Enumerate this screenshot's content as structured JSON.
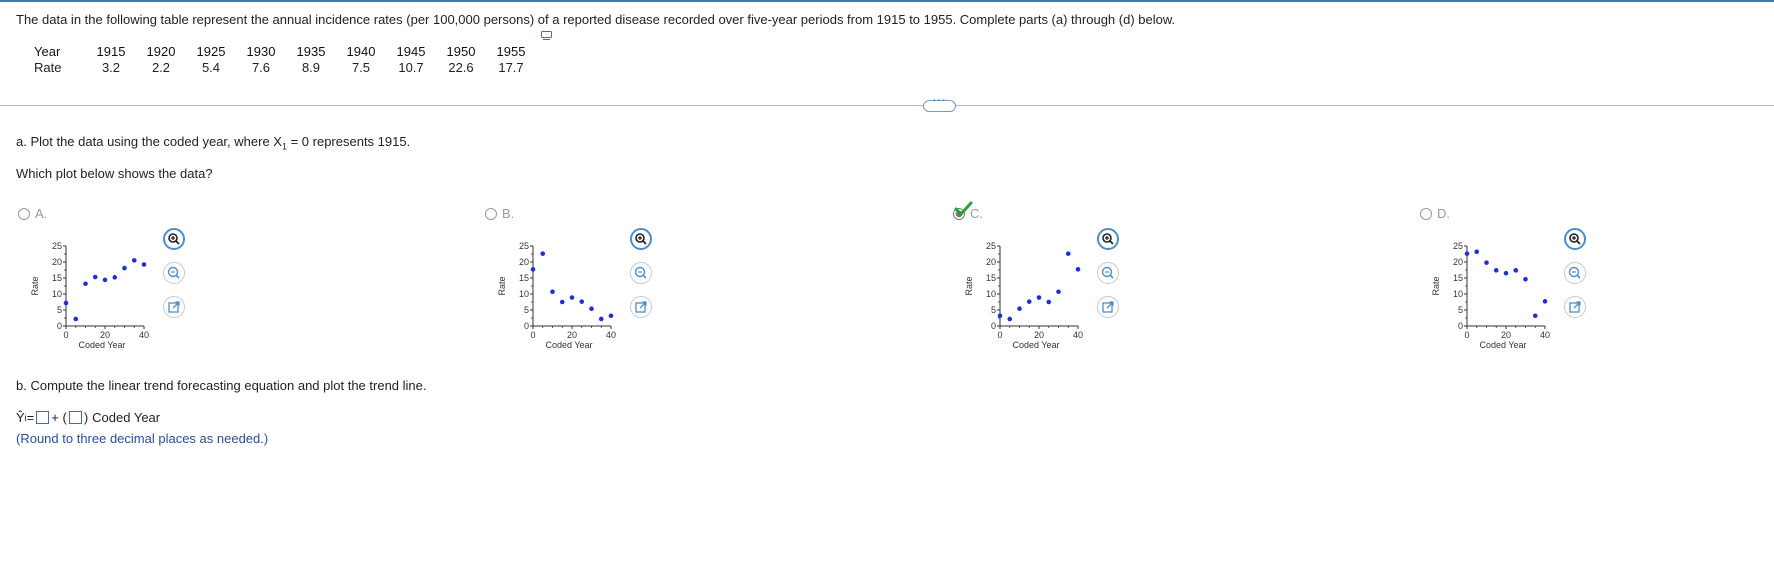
{
  "intro": "The data in the following table represent the annual incidence rates (per 100,000 persons) of a reported disease recorded over five-year periods from 1915 to 1955. Complete parts (a) through (d) below.",
  "table": {
    "year_label": "Year",
    "rate_label": "Rate",
    "years": [
      "1915",
      "1920",
      "1925",
      "1930",
      "1935",
      "1940",
      "1945",
      "1950",
      "1955"
    ],
    "rates": [
      "3.2",
      "2.2",
      "5.4",
      "7.6",
      "8.9",
      "7.5",
      "10.7",
      "22.6",
      "17.7"
    ]
  },
  "more_label": "···",
  "part_a": {
    "prompt": "a. Plot the data using the coded year, where X",
    "subscript": "1",
    "prompt_end": " = 0 represents 1915.",
    "question": "Which plot below shows the data?"
  },
  "options": [
    {
      "letter": "A.",
      "selected": false
    },
    {
      "letter": "B.",
      "selected": false
    },
    {
      "letter": "C.",
      "selected": true
    },
    {
      "letter": "D.",
      "selected": false
    }
  ],
  "plot_labels": {
    "ylabel": "Rate",
    "xlabel": "Coded Year",
    "yticks": [
      "25",
      "20",
      "15",
      "10",
      "5",
      "0"
    ],
    "xticks": [
      "0",
      "20",
      "40"
    ]
  },
  "chart_data": [
    {
      "type": "scatter",
      "x": [
        0,
        5,
        10,
        15,
        20,
        25,
        30,
        35,
        40
      ],
      "y": [
        7.2,
        2.2,
        13.2,
        15.3,
        14.4,
        15.2,
        18.1,
        20.5,
        19.2
      ],
      "xlim": [
        0,
        40
      ],
      "ylim": [
        0,
        25
      ]
    },
    {
      "type": "scatter",
      "x": [
        0,
        5,
        10,
        15,
        20,
        25,
        30,
        35,
        40
      ],
      "y": [
        17.7,
        22.6,
        10.7,
        7.5,
        8.9,
        7.6,
        5.4,
        2.2,
        3.2
      ],
      "xlim": [
        0,
        40
      ],
      "ylim": [
        0,
        25
      ]
    },
    {
      "type": "scatter",
      "x": [
        0,
        5,
        10,
        15,
        20,
        25,
        30,
        35,
        40
      ],
      "y": [
        3.2,
        2.2,
        5.4,
        7.6,
        8.9,
        7.5,
        10.7,
        22.6,
        17.7
      ],
      "xlim": [
        0,
        40
      ],
      "ylim": [
        0,
        25
      ]
    },
    {
      "type": "scatter",
      "x": [
        0,
        5,
        10,
        15,
        20,
        25,
        30,
        35,
        40
      ],
      "y": [
        22.6,
        23.2,
        19.8,
        17.4,
        16.5,
        17.4,
        14.6,
        3.2,
        7.7
      ],
      "xlim": [
        0,
        40
      ],
      "ylim": [
        0,
        25
      ]
    }
  ],
  "part_b": {
    "prompt": "b. Compute the linear trend forecasting equation and plot the trend line.",
    "eq_lhs": "Ŷ",
    "eq_sub": "i",
    "eq_equals": " =",
    "eq_plus": "+ (",
    "eq_close": ")",
    "eq_tail": "Coded Year",
    "round_note": "(Round to three decimal places as needed.)"
  },
  "colors": {
    "point": "#1f2fd6",
    "accent": "#4d8fc7",
    "check": "#2e9e3a"
  }
}
